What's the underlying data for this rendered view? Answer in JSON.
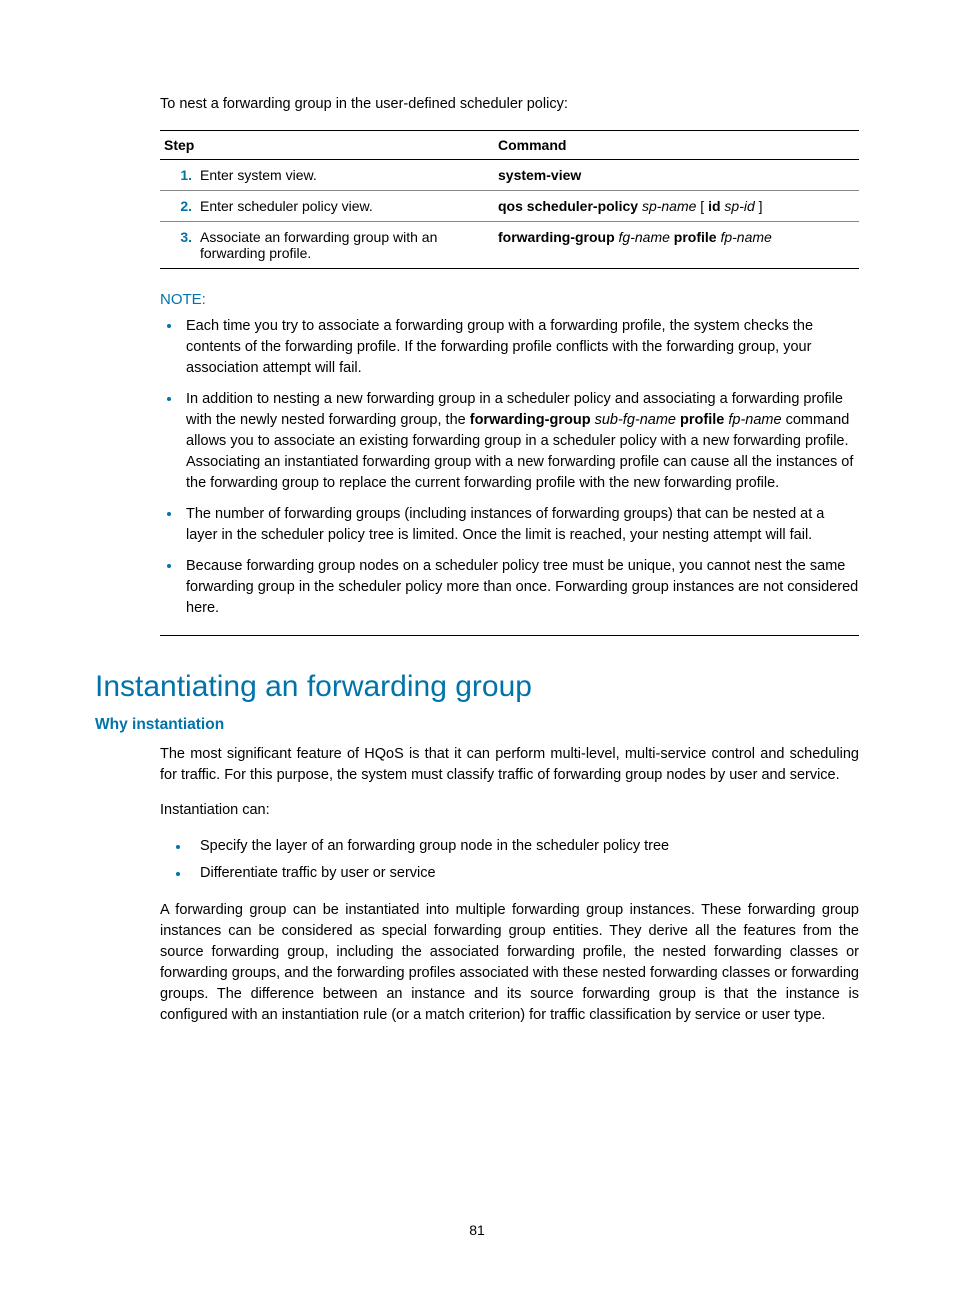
{
  "intro": "To nest a forwarding group in the user-defined scheduler policy:",
  "table": {
    "headers": {
      "step": "Step",
      "command": "Command"
    },
    "rows": [
      {
        "num": "1.",
        "step": "Enter system view.",
        "cmd_html": "<span class='cmd-bold'>system-view</span>"
      },
      {
        "num": "2.",
        "step": "Enter scheduler policy view.",
        "cmd_html": "<span class='cmd-bold'>qos scheduler-policy</span> <span class='cmd-italic'>sp-name</span> [ <span class='cmd-bold'>id</span> <span class='cmd-italic'>sp-id</span> ]"
      },
      {
        "num": "3.",
        "step": "Associate an forwarding group with an forwarding profile.",
        "cmd_html": "<span class='cmd-bold'>forwarding-group</span> <span class='cmd-italic'>fg-name</span> <span class='cmd-bold'>profile</span> <span class='cmd-italic'>fp-name</span>"
      }
    ]
  },
  "note": {
    "label": "NOTE:",
    "items": [
      "Each time you try to associate a forwarding group with a forwarding profile, the system checks the contents of the forwarding profile. If the forwarding profile conflicts with the forwarding group, your association attempt will fail.",
      "In addition to nesting a new forwarding group in a scheduler policy and associating a forwarding profile with the newly nested forwarding group, the <span class='cmd-bold'>forwarding-group</span> <span class='cmd-italic'>sub-fg-name</span> <span class='cmd-bold'>profile</span> <span class='cmd-italic'>fp-name</span> command allows you to associate an existing forwarding group in a scheduler policy with a new forwarding profile. Associating an instantiated forwarding group with a new forwarding profile can cause all the instances of the forwarding group to replace the current forwarding profile with the new forwarding profile.",
      "The number of forwarding groups (including instances of forwarding groups) that can be nested at a layer in the scheduler policy tree is limited. Once the limit is reached, your nesting attempt will fail.",
      "Because forwarding group nodes on a scheduler policy tree must be unique, you cannot nest the same forwarding group in the scheduler policy more than once. Forwarding group instances are not considered here."
    ]
  },
  "section": {
    "title": "Instantiating an forwarding group",
    "subtitle": "Why instantiation",
    "p1": "The most significant feature of HQoS is that it can perform multi-level, multi-service control and scheduling for traffic. For this purpose, the system must classify traffic of forwarding group nodes by user and service.",
    "p2": "Instantiation can:",
    "list": [
      "Specify the layer of an forwarding group node in the scheduler policy tree",
      "Differentiate traffic by user or service"
    ],
    "p3": "A forwarding group can be instantiated into multiple forwarding group instances. These forwarding group instances can be considered as special forwarding group entities. They derive all the features from the source forwarding group, including the associated forwarding profile, the nested forwarding classes or forwarding groups, and the forwarding profiles associated with these nested forwarding classes or forwarding groups. The difference between an instance and its source forwarding group is that the instance is configured with an instantiation rule (or a match criterion) for traffic classification by service or user type."
  },
  "page_number": "81"
}
